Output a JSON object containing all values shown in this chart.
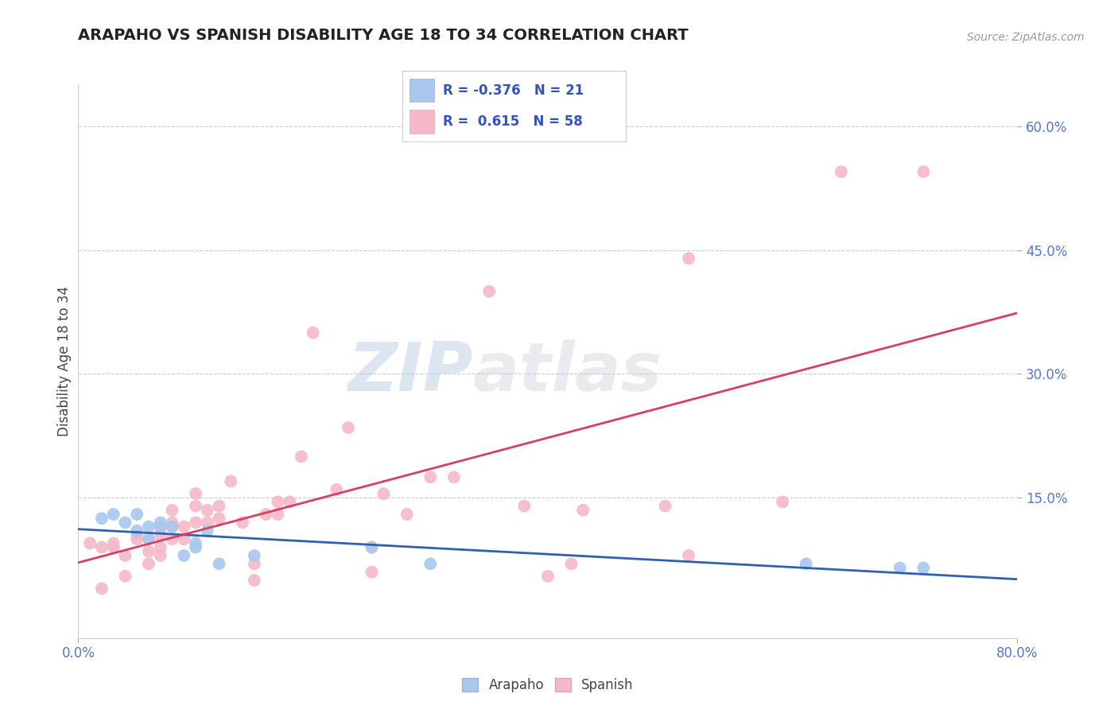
{
  "title": "ARAPAHO VS SPANISH DISABILITY AGE 18 TO 34 CORRELATION CHART",
  "source": "Source: ZipAtlas.com",
  "ylabel": "Disability Age 18 to 34",
  "xlim": [
    0.0,
    0.8
  ],
  "ylim": [
    -0.02,
    0.65
  ],
  "ytick_vals": [
    0.15,
    0.3,
    0.45,
    0.6
  ],
  "ytick_labels": [
    "15.0%",
    "30.0%",
    "45.0%",
    "60.0%"
  ],
  "background_color": "#ffffff",
  "grid_color": "#cccccc",
  "watermark_zip": "ZIP",
  "watermark_atlas": "atlas",
  "legend_R_arapaho": "-0.376",
  "legend_N_arapaho": "21",
  "legend_R_spanish": "0.615",
  "legend_N_spanish": "58",
  "arapaho_color": "#a8c8f0",
  "spanish_color": "#f4b8c8",
  "arapaho_line_color": "#3060b0",
  "spanish_line_color": "#d84060",
  "arapaho_scatter": [
    [
      0.02,
      0.125
    ],
    [
      0.03,
      0.13
    ],
    [
      0.04,
      0.12
    ],
    [
      0.05,
      0.11
    ],
    [
      0.05,
      0.13
    ],
    [
      0.06,
      0.115
    ],
    [
      0.06,
      0.1
    ],
    [
      0.07,
      0.115
    ],
    [
      0.07,
      0.12
    ],
    [
      0.08,
      0.115
    ],
    [
      0.09,
      0.08
    ],
    [
      0.1,
      0.09
    ],
    [
      0.1,
      0.095
    ],
    [
      0.11,
      0.11
    ],
    [
      0.12,
      0.07
    ],
    [
      0.15,
      0.08
    ],
    [
      0.25,
      0.09
    ],
    [
      0.3,
      0.07
    ],
    [
      0.62,
      0.07
    ],
    [
      0.7,
      0.065
    ],
    [
      0.72,
      0.065
    ]
  ],
  "spanish_scatter": [
    [
      0.01,
      0.095
    ],
    [
      0.02,
      0.04
    ],
    [
      0.02,
      0.09
    ],
    [
      0.03,
      0.09
    ],
    [
      0.03,
      0.095
    ],
    [
      0.04,
      0.055
    ],
    [
      0.04,
      0.08
    ],
    [
      0.05,
      0.1
    ],
    [
      0.05,
      0.105
    ],
    [
      0.06,
      0.07
    ],
    [
      0.06,
      0.085
    ],
    [
      0.06,
      0.1
    ],
    [
      0.07,
      0.08
    ],
    [
      0.07,
      0.09
    ],
    [
      0.07,
      0.105
    ],
    [
      0.07,
      0.115
    ],
    [
      0.08,
      0.1
    ],
    [
      0.08,
      0.115
    ],
    [
      0.08,
      0.12
    ],
    [
      0.08,
      0.135
    ],
    [
      0.09,
      0.1
    ],
    [
      0.09,
      0.115
    ],
    [
      0.1,
      0.12
    ],
    [
      0.1,
      0.14
    ],
    [
      0.1,
      0.155
    ],
    [
      0.11,
      0.12
    ],
    [
      0.11,
      0.135
    ],
    [
      0.12,
      0.125
    ],
    [
      0.12,
      0.14
    ],
    [
      0.13,
      0.17
    ],
    [
      0.14,
      0.12
    ],
    [
      0.15,
      0.05
    ],
    [
      0.15,
      0.07
    ],
    [
      0.16,
      0.13
    ],
    [
      0.17,
      0.13
    ],
    [
      0.17,
      0.145
    ],
    [
      0.18,
      0.145
    ],
    [
      0.19,
      0.2
    ],
    [
      0.2,
      0.35
    ],
    [
      0.22,
      0.16
    ],
    [
      0.23,
      0.235
    ],
    [
      0.25,
      0.06
    ],
    [
      0.25,
      0.09
    ],
    [
      0.26,
      0.155
    ],
    [
      0.28,
      0.13
    ],
    [
      0.3,
      0.175
    ],
    [
      0.32,
      0.175
    ],
    [
      0.35,
      0.4
    ],
    [
      0.38,
      0.14
    ],
    [
      0.4,
      0.055
    ],
    [
      0.42,
      0.07
    ],
    [
      0.43,
      0.135
    ],
    [
      0.5,
      0.14
    ],
    [
      0.52,
      0.08
    ],
    [
      0.6,
      0.145
    ],
    [
      0.65,
      0.545
    ],
    [
      0.72,
      0.545
    ],
    [
      0.52,
      0.44
    ]
  ]
}
